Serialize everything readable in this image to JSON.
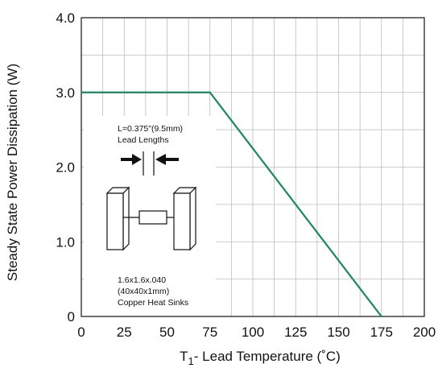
{
  "chart_data": {
    "type": "line",
    "xlabel_main": "T",
    "xlabel_sub": "1",
    "xlabel_rest": "- Lead Temperature (˚C)",
    "ylabel": "Steady State Power Dissipation (W)",
    "xlim": [
      0,
      200
    ],
    "ylim": [
      0,
      4.0
    ],
    "x_ticks": [
      "0",
      "25",
      "50",
      "75",
      "100",
      "125",
      "150",
      "175",
      "200"
    ],
    "x_tick_values": [
      0,
      25,
      50,
      75,
      100,
      125,
      150,
      175,
      200
    ],
    "y_ticks": [
      "0",
      "1.0",
      "2.0",
      "3.0",
      "4.0"
    ],
    "y_tick_values": [
      0,
      1,
      2,
      3,
      4
    ],
    "grid": true,
    "line_color": "#1a8a5a",
    "series": [
      {
        "x": [
          0,
          75,
          175
        ],
        "y": [
          3.0,
          3.0,
          0
        ]
      }
    ],
    "annotations": {
      "lead_line1": "L=0.375\"(9.5mm)",
      "lead_line2": "Lead Lengths",
      "sink_line1": "1.6x1.6x.040",
      "sink_line2": "(40x40x1mm)",
      "sink_line3": "Copper Heat Sinks"
    }
  }
}
